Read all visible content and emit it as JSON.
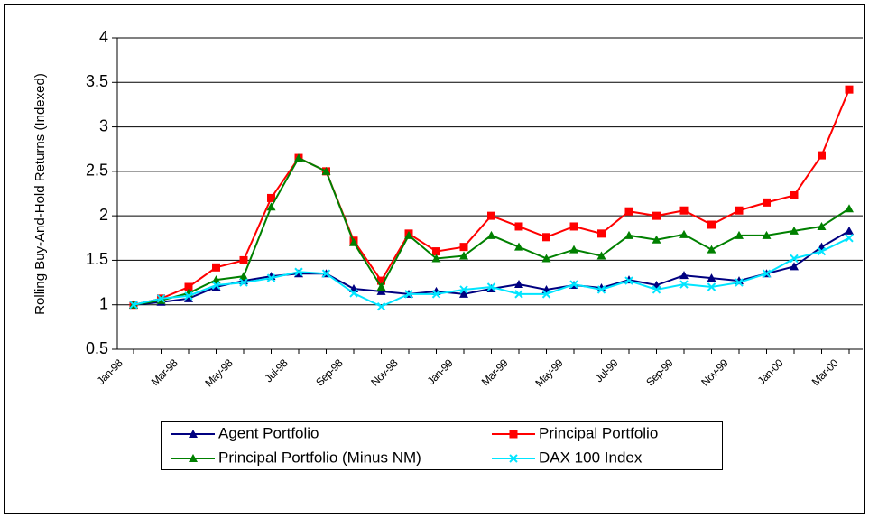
{
  "chart_data": {
    "type": "line",
    "y_label": "Rolling Buy-And-Hold Returns (Indexed)",
    "categories": [
      "Jan-98",
      null,
      "Mar-98",
      null,
      "May-98",
      null,
      "Jul-98",
      null,
      "Sep-98",
      null,
      "Nov-98",
      null,
      "Jan-99",
      null,
      "Mar-99",
      null,
      "May-99",
      null,
      "Jul-99",
      null,
      "Sep-99",
      null,
      "Nov-99",
      null,
      "Jan-00",
      null,
      "Mar-00"
    ],
    "ylim": [
      0.5,
      4
    ],
    "yticks": [
      0.5,
      1,
      1.5,
      2,
      2.5,
      3,
      3.5,
      4
    ],
    "grid": true,
    "series": [
      {
        "name": "Agent Portfolio",
        "color": "#000080",
        "marker": "triangle",
        "values": [
          1.0,
          1.03,
          1.07,
          1.2,
          1.27,
          1.32,
          1.35,
          1.35,
          1.18,
          1.15,
          1.12,
          1.15,
          1.12,
          1.18,
          1.23,
          1.17,
          1.22,
          1.19,
          1.28,
          1.22,
          1.33,
          1.3,
          1.27,
          1.35,
          1.43,
          1.65,
          1.83
        ]
      },
      {
        "name": "Principal Portfolio",
        "color": "#ff0000",
        "marker": "square",
        "values": [
          1.0,
          1.07,
          1.2,
          1.42,
          1.5,
          2.2,
          2.65,
          2.5,
          1.72,
          1.27,
          1.8,
          1.6,
          1.65,
          2.0,
          1.88,
          1.76,
          1.88,
          1.8,
          2.05,
          2.0,
          2.06,
          1.9,
          2.06,
          2.15,
          2.23,
          2.68,
          3.42
        ]
      },
      {
        "name": "Principal Portfolio (Minus NM)",
        "color": "#008000",
        "marker": "triangle",
        "values": [
          1.0,
          1.05,
          1.13,
          1.28,
          1.32,
          2.1,
          2.65,
          2.5,
          1.7,
          1.2,
          1.78,
          1.52,
          1.55,
          1.78,
          1.65,
          1.52,
          1.62,
          1.55,
          1.78,
          1.73,
          1.79,
          1.62,
          1.78,
          1.78,
          1.83,
          1.88,
          2.08
        ]
      },
      {
        "name": "DAX 100 Index",
        "color": "#00e5ff",
        "marker": "x",
        "values": [
          1.0,
          1.07,
          1.1,
          1.22,
          1.25,
          1.3,
          1.37,
          1.35,
          1.13,
          0.98,
          1.12,
          1.12,
          1.17,
          1.2,
          1.12,
          1.12,
          1.23,
          1.17,
          1.27,
          1.17,
          1.23,
          1.2,
          1.25,
          1.35,
          1.52,
          1.6,
          1.75
        ]
      }
    ]
  }
}
